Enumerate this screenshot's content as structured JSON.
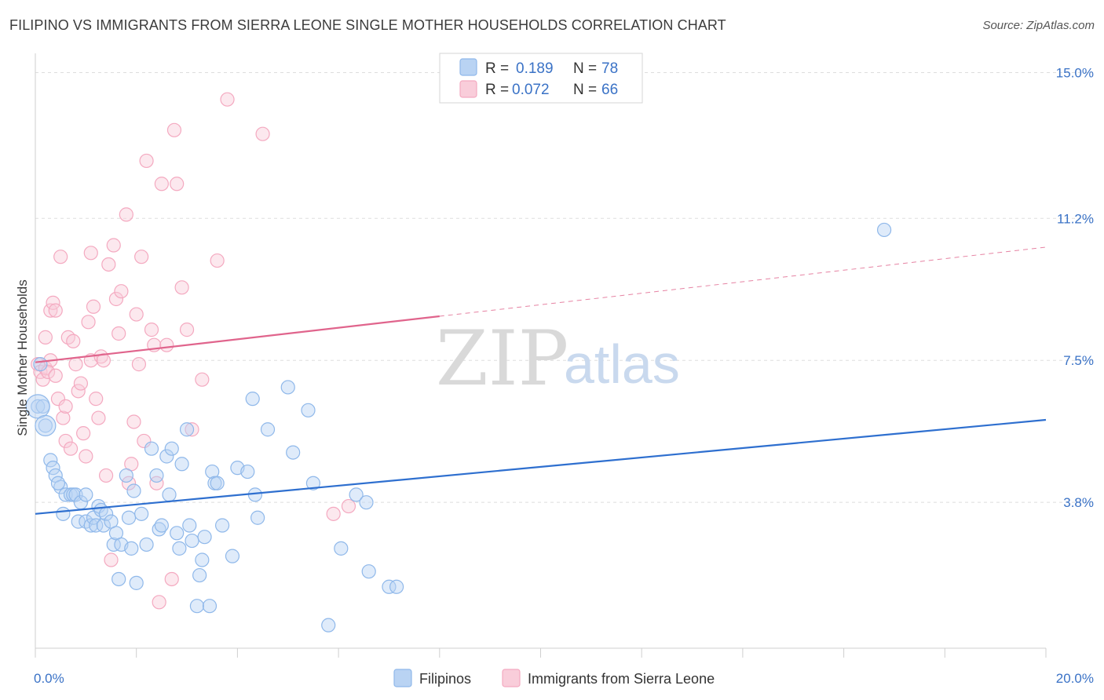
{
  "header": {
    "title": "FILIPINO VS IMMIGRANTS FROM SIERRA LEONE SINGLE MOTHER HOUSEHOLDS CORRELATION CHART",
    "source": "Source: ZipAtlas.com"
  },
  "watermark": {
    "zip": "ZIP",
    "atlas": "atlas"
  },
  "legend": {
    "rows": [
      {
        "r_label": "R =",
        "r_value": "0.189",
        "n_label": "N =",
        "n_value": "78",
        "color": "#8fb8ea"
      },
      {
        "r_label": "R =",
        "r_value": "0.072",
        "n_label": "N =",
        "n_value": "66",
        "color": "#f4a9c0"
      }
    ]
  },
  "bottom_legend": {
    "items": [
      "Filipinos",
      "Immigrants from Sierra Leone"
    ]
  },
  "chart_data": {
    "type": "scatter",
    "title": "FILIPINO VS IMMIGRANTS FROM SIERRA LEONE SINGLE MOTHER HOUSEHOLDS CORRELATION CHART",
    "xlabel": "",
    "ylabel": "Single Mother Households",
    "xlim": [
      0,
      20
    ],
    "ylim": [
      0,
      15.5
    ],
    "x_tick_labels": [
      "0.0%",
      "20.0%"
    ],
    "y_ticks": [
      3.8,
      7.5,
      11.2,
      15.0
    ],
    "y_tick_labels": [
      "3.8%",
      "7.5%",
      "11.2%",
      "15.0%"
    ],
    "grid": "horizontal dashed",
    "legend_position": "top-center",
    "series": [
      {
        "name": "Filipinos",
        "color": "#8fb8ea",
        "line_color": "#2e6fcf",
        "trend": {
          "x": [
            0,
            20
          ],
          "y": [
            3.5,
            5.95
          ]
        },
        "points": [
          [
            0.05,
            6.3
          ],
          [
            0.2,
            5.8
          ],
          [
            0.3,
            4.9
          ],
          [
            0.35,
            4.7
          ],
          [
            0.4,
            4.5
          ],
          [
            0.5,
            4.2
          ],
          [
            0.45,
            4.3
          ],
          [
            0.6,
            4.0
          ],
          [
            0.7,
            4.0
          ],
          [
            0.75,
            4.0
          ],
          [
            0.8,
            4.0
          ],
          [
            0.55,
            3.5
          ],
          [
            0.85,
            3.3
          ],
          [
            0.9,
            3.8
          ],
          [
            1.0,
            3.3
          ],
          [
            1.0,
            4.0
          ],
          [
            1.1,
            3.2
          ],
          [
            1.15,
            3.4
          ],
          [
            1.2,
            3.2
          ],
          [
            1.25,
            3.7
          ],
          [
            1.3,
            3.6
          ],
          [
            1.35,
            3.2
          ],
          [
            1.4,
            3.5
          ],
          [
            1.5,
            3.3
          ],
          [
            1.55,
            2.7
          ],
          [
            1.6,
            3.0
          ],
          [
            1.65,
            1.8
          ],
          [
            1.7,
            2.7
          ],
          [
            1.8,
            4.5
          ],
          [
            1.85,
            3.4
          ],
          [
            1.9,
            2.6
          ],
          [
            1.95,
            4.1
          ],
          [
            2.0,
            1.7
          ],
          [
            2.1,
            3.5
          ],
          [
            2.2,
            2.7
          ],
          [
            2.3,
            5.2
          ],
          [
            2.4,
            4.5
          ],
          [
            2.45,
            3.1
          ],
          [
            2.5,
            3.2
          ],
          [
            2.6,
            5.0
          ],
          [
            2.65,
            4.0
          ],
          [
            2.7,
            5.2
          ],
          [
            2.8,
            3.0
          ],
          [
            2.85,
            2.6
          ],
          [
            2.9,
            4.8
          ],
          [
            3.0,
            5.7
          ],
          [
            3.05,
            3.2
          ],
          [
            3.1,
            2.8
          ],
          [
            3.2,
            1.1
          ],
          [
            3.25,
            1.9
          ],
          [
            3.3,
            2.3
          ],
          [
            3.35,
            2.9
          ],
          [
            3.45,
            1.1
          ],
          [
            3.5,
            4.6
          ],
          [
            3.55,
            4.3
          ],
          [
            3.6,
            4.3
          ],
          [
            3.7,
            3.2
          ],
          [
            3.9,
            2.4
          ],
          [
            4.0,
            4.7
          ],
          [
            4.2,
            4.6
          ],
          [
            4.3,
            6.5
          ],
          [
            4.35,
            4.0
          ],
          [
            4.4,
            3.4
          ],
          [
            4.6,
            5.7
          ],
          [
            5.0,
            6.8
          ],
          [
            5.1,
            5.1
          ],
          [
            5.4,
            6.2
          ],
          [
            5.5,
            4.3
          ],
          [
            5.8,
            0.6
          ],
          [
            6.05,
            2.6
          ],
          [
            6.35,
            4.0
          ],
          [
            6.55,
            3.8
          ],
          [
            6.6,
            2.0
          ],
          [
            7.0,
            1.6
          ],
          [
            7.15,
            1.6
          ],
          [
            16.8,
            10.9
          ],
          [
            0.1,
            7.4
          ],
          [
            0.15,
            6.3
          ]
        ]
      },
      {
        "name": "Immigrants from Sierra Leone",
        "color": "#f4a9c0",
        "line_color": "#e0648c",
        "trend": {
          "x": [
            0,
            20
          ],
          "y": [
            7.45,
            10.45
          ]
        },
        "trend_solid_until": 8,
        "points": [
          [
            0.05,
            7.4
          ],
          [
            0.1,
            7.2
          ],
          [
            0.15,
            7.0
          ],
          [
            0.2,
            7.3
          ],
          [
            0.3,
            7.5
          ],
          [
            0.2,
            8.1
          ],
          [
            0.3,
            8.8
          ],
          [
            0.35,
            9.0
          ],
          [
            0.4,
            8.8
          ],
          [
            0.5,
            10.2
          ],
          [
            0.45,
            6.5
          ],
          [
            0.55,
            6.0
          ],
          [
            0.6,
            5.4
          ],
          [
            0.65,
            8.1
          ],
          [
            0.7,
            5.2
          ],
          [
            0.75,
            8.0
          ],
          [
            0.8,
            7.4
          ],
          [
            0.85,
            6.7
          ],
          [
            0.9,
            6.9
          ],
          [
            0.95,
            5.6
          ],
          [
            1.0,
            5.0
          ],
          [
            1.05,
            8.5
          ],
          [
            1.1,
            7.5
          ],
          [
            1.1,
            10.3
          ],
          [
            1.15,
            8.9
          ],
          [
            1.2,
            6.5
          ],
          [
            1.25,
            6.0
          ],
          [
            1.3,
            7.6
          ],
          [
            1.35,
            7.5
          ],
          [
            1.4,
            4.5
          ],
          [
            1.45,
            10.0
          ],
          [
            1.5,
            2.3
          ],
          [
            1.55,
            10.5
          ],
          [
            1.6,
            9.1
          ],
          [
            1.65,
            8.2
          ],
          [
            1.7,
            9.3
          ],
          [
            1.8,
            11.3
          ],
          [
            1.85,
            4.3
          ],
          [
            1.9,
            4.8
          ],
          [
            1.95,
            5.9
          ],
          [
            2.0,
            8.7
          ],
          [
            2.05,
            7.4
          ],
          [
            2.1,
            10.2
          ],
          [
            2.15,
            5.4
          ],
          [
            2.2,
            12.7
          ],
          [
            2.3,
            8.3
          ],
          [
            2.35,
            7.9
          ],
          [
            2.4,
            4.3
          ],
          [
            2.45,
            1.2
          ],
          [
            2.5,
            12.1
          ],
          [
            2.6,
            7.9
          ],
          [
            2.7,
            1.8
          ],
          [
            2.75,
            13.5
          ],
          [
            2.8,
            12.1
          ],
          [
            2.9,
            9.4
          ],
          [
            3.0,
            8.3
          ],
          [
            3.1,
            5.7
          ],
          [
            3.3,
            7.0
          ],
          [
            3.6,
            10.1
          ],
          [
            3.8,
            14.3
          ],
          [
            4.5,
            13.4
          ],
          [
            5.9,
            3.5
          ],
          [
            6.2,
            3.7
          ],
          [
            0.25,
            7.2
          ],
          [
            0.4,
            7.1
          ],
          [
            0.6,
            6.3
          ]
        ]
      }
    ]
  }
}
